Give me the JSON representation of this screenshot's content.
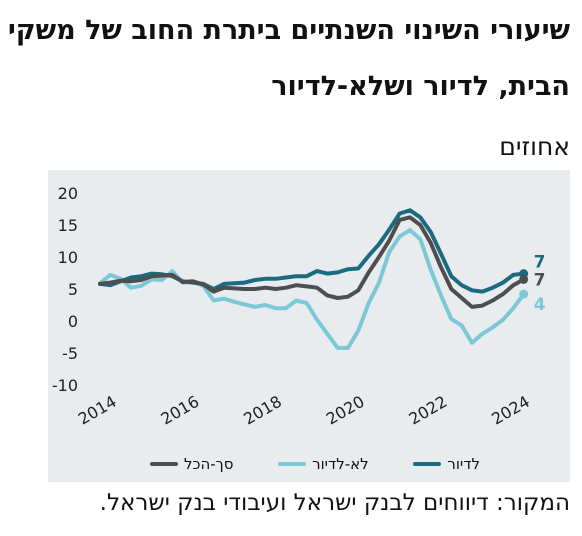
{
  "title_line1": "שיעורי השינוי השנתיים ביתרת החוב של משקי",
  "title_line2": "הבית, לדיור ושלא-לדיור",
  "units": "אחוזים",
  "source": "המקור: דיווחים לבנק ישראל ועיבודי בנק ישראל.",
  "chart_data": {
    "type": "line",
    "ylim": [
      -10,
      20
    ],
    "yticks": [
      20,
      15,
      10,
      5,
      0,
      -5,
      -10
    ],
    "xlim": [
      2014,
      2024.5
    ],
    "xticks": [
      2014,
      2016,
      2018,
      2020,
      2022,
      2024
    ],
    "grid": false,
    "legend_position": "bottom",
    "series": [
      {
        "name": "לדיור",
        "color": "#1b6b80",
        "end_label": "7",
        "x": [
          2014,
          2014.25,
          2014.5,
          2014.75,
          2015,
          2015.25,
          2015.5,
          2015.75,
          2016,
          2016.25,
          2016.5,
          2016.75,
          2017,
          2017.25,
          2017.5,
          2017.75,
          2018,
          2018.25,
          2018.5,
          2018.75,
          2019,
          2019.25,
          2019.5,
          2019.75,
          2020,
          2020.25,
          2020.5,
          2020.75,
          2021,
          2021.25,
          2021.5,
          2021.75,
          2022,
          2022.25,
          2022.5,
          2022.75,
          2023,
          2023.25,
          2023.5,
          2023.75,
          2024,
          2024.25
        ],
        "values": [
          5.8,
          5.6,
          6.2,
          6.8,
          7.0,
          7.4,
          7.3,
          7.0,
          6.2,
          6.0,
          5.8,
          5.0,
          5.8,
          5.9,
          6.0,
          6.4,
          6.6,
          6.6,
          6.8,
          7.0,
          7.0,
          7.8,
          7.4,
          7.6,
          8.1,
          8.2,
          10.2,
          12.0,
          14.3,
          16.8,
          17.3,
          16.2,
          13.9,
          10.5,
          7.0,
          5.6,
          4.8,
          4.6,
          5.2,
          6.0,
          7.2,
          7.4
        ]
      },
      {
        "name": "לא-לדיור",
        "color": "#7cc8d6",
        "end_label": "4",
        "x": [
          2014,
          2014.25,
          2014.5,
          2014.75,
          2015,
          2015.25,
          2015.5,
          2015.75,
          2016,
          2016.25,
          2016.5,
          2016.75,
          2017,
          2017.25,
          2017.5,
          2017.75,
          2018,
          2018.25,
          2018.5,
          2018.75,
          2019,
          2019.25,
          2019.5,
          2019.75,
          2020,
          2020.25,
          2020.5,
          2020.75,
          2021,
          2021.25,
          2021.5,
          2021.75,
          2022,
          2022.25,
          2022.5,
          2022.75,
          2023,
          2023.25,
          2023.5,
          2023.75,
          2024,
          2024.25
        ],
        "values": [
          5.9,
          7.2,
          6.6,
          5.2,
          5.5,
          6.5,
          6.4,
          7.8,
          6.0,
          6.1,
          5.5,
          3.2,
          3.5,
          3.0,
          2.6,
          2.2,
          2.5,
          2.0,
          2.0,
          3.2,
          2.8,
          0.2,
          -2.0,
          -4.2,
          -4.2,
          -1.5,
          2.8,
          6.0,
          10.8,
          13.2,
          14.2,
          12.8,
          8.0,
          4.0,
          0.3,
          -0.7,
          -3.4,
          -2.0,
          -1.0,
          0.2,
          2.0,
          4.2
        ]
      },
      {
        "name": "סך-הכל",
        "color": "#4e4e4e",
        "end_label": "7",
        "x": [
          2014,
          2014.25,
          2014.5,
          2014.75,
          2015,
          2015.25,
          2015.5,
          2015.75,
          2016,
          2016.25,
          2016.5,
          2016.75,
          2017,
          2017.25,
          2017.5,
          2017.75,
          2018,
          2018.25,
          2018.5,
          2018.75,
          2019,
          2019.25,
          2019.5,
          2019.75,
          2020,
          2020.25,
          2020.5,
          2020.75,
          2021,
          2021.25,
          2021.5,
          2021.75,
          2022,
          2022.25,
          2022.5,
          2022.75,
          2023,
          2023.25,
          2023.5,
          2023.75,
          2024,
          2024.25
        ],
        "values": [
          5.8,
          6.0,
          6.3,
          6.2,
          6.4,
          7.0,
          7.1,
          7.2,
          6.1,
          6.2,
          5.7,
          4.6,
          5.2,
          5.1,
          5.0,
          5.0,
          5.2,
          5.0,
          5.2,
          5.6,
          5.4,
          5.2,
          4.0,
          3.6,
          3.8,
          4.8,
          7.6,
          10.0,
          12.6,
          15.8,
          16.2,
          15.0,
          12.2,
          8.4,
          5.0,
          3.6,
          2.2,
          2.4,
          3.2,
          4.2,
          5.6,
          6.5
        ]
      }
    ]
  }
}
